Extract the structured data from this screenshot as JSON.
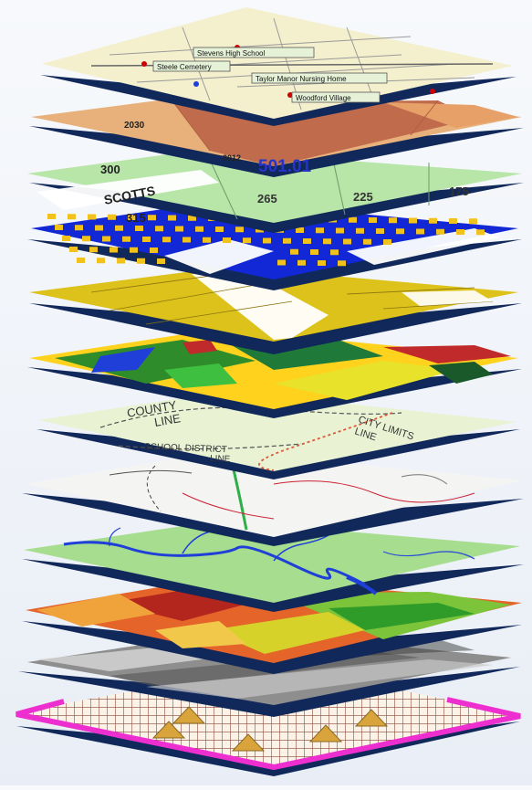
{
  "map_layers": [
    {
      "id": "streets",
      "labels": [
        "Stevens High School",
        "Steele Cemetery",
        "Taylor Manor Nursing Home",
        "Woodford Village"
      ]
    },
    {
      "id": "census-tracts",
      "labels": [
        "2030",
        "3012",
        "501.01"
      ]
    },
    {
      "id": "zoning",
      "labels": [
        "300",
        "SCOTTS",
        "265",
        "225",
        "175",
        "315"
      ]
    },
    {
      "id": "buildings",
      "labels": []
    },
    {
      "id": "parcels",
      "labels": []
    },
    {
      "id": "land-cover",
      "labels": []
    },
    {
      "id": "boundaries",
      "labels": [
        "COUNTY",
        "LINE",
        "CITY LIMITS",
        "LINE",
        "SCHOOL DISTRICT",
        "LINE"
      ]
    },
    {
      "id": "roads",
      "labels": []
    },
    {
      "id": "hydrology",
      "labels": []
    },
    {
      "id": "elevation",
      "labels": []
    },
    {
      "id": "aerial-imagery",
      "labels": []
    },
    {
      "id": "survey-grid",
      "labels": []
    }
  ],
  "colors": {
    "base_plate": "#11285a",
    "streets_bg": "#f4efcc",
    "tracts_left": "#e8b07a",
    "tracts_center": "#c06b4c",
    "zoning_bg": "#b8e6a8",
    "buildings_bg": "#1228d6",
    "buildings_fill": "#f2c21c",
    "parcels_bg": "#dcc21a",
    "boundaries_bg": "#e9f3d4",
    "hydrology_bg": "#a6dd8e",
    "river": "#1f3fd8",
    "grid_outline": "#ee2fd0",
    "grid_triangle": "#d9a43c"
  }
}
